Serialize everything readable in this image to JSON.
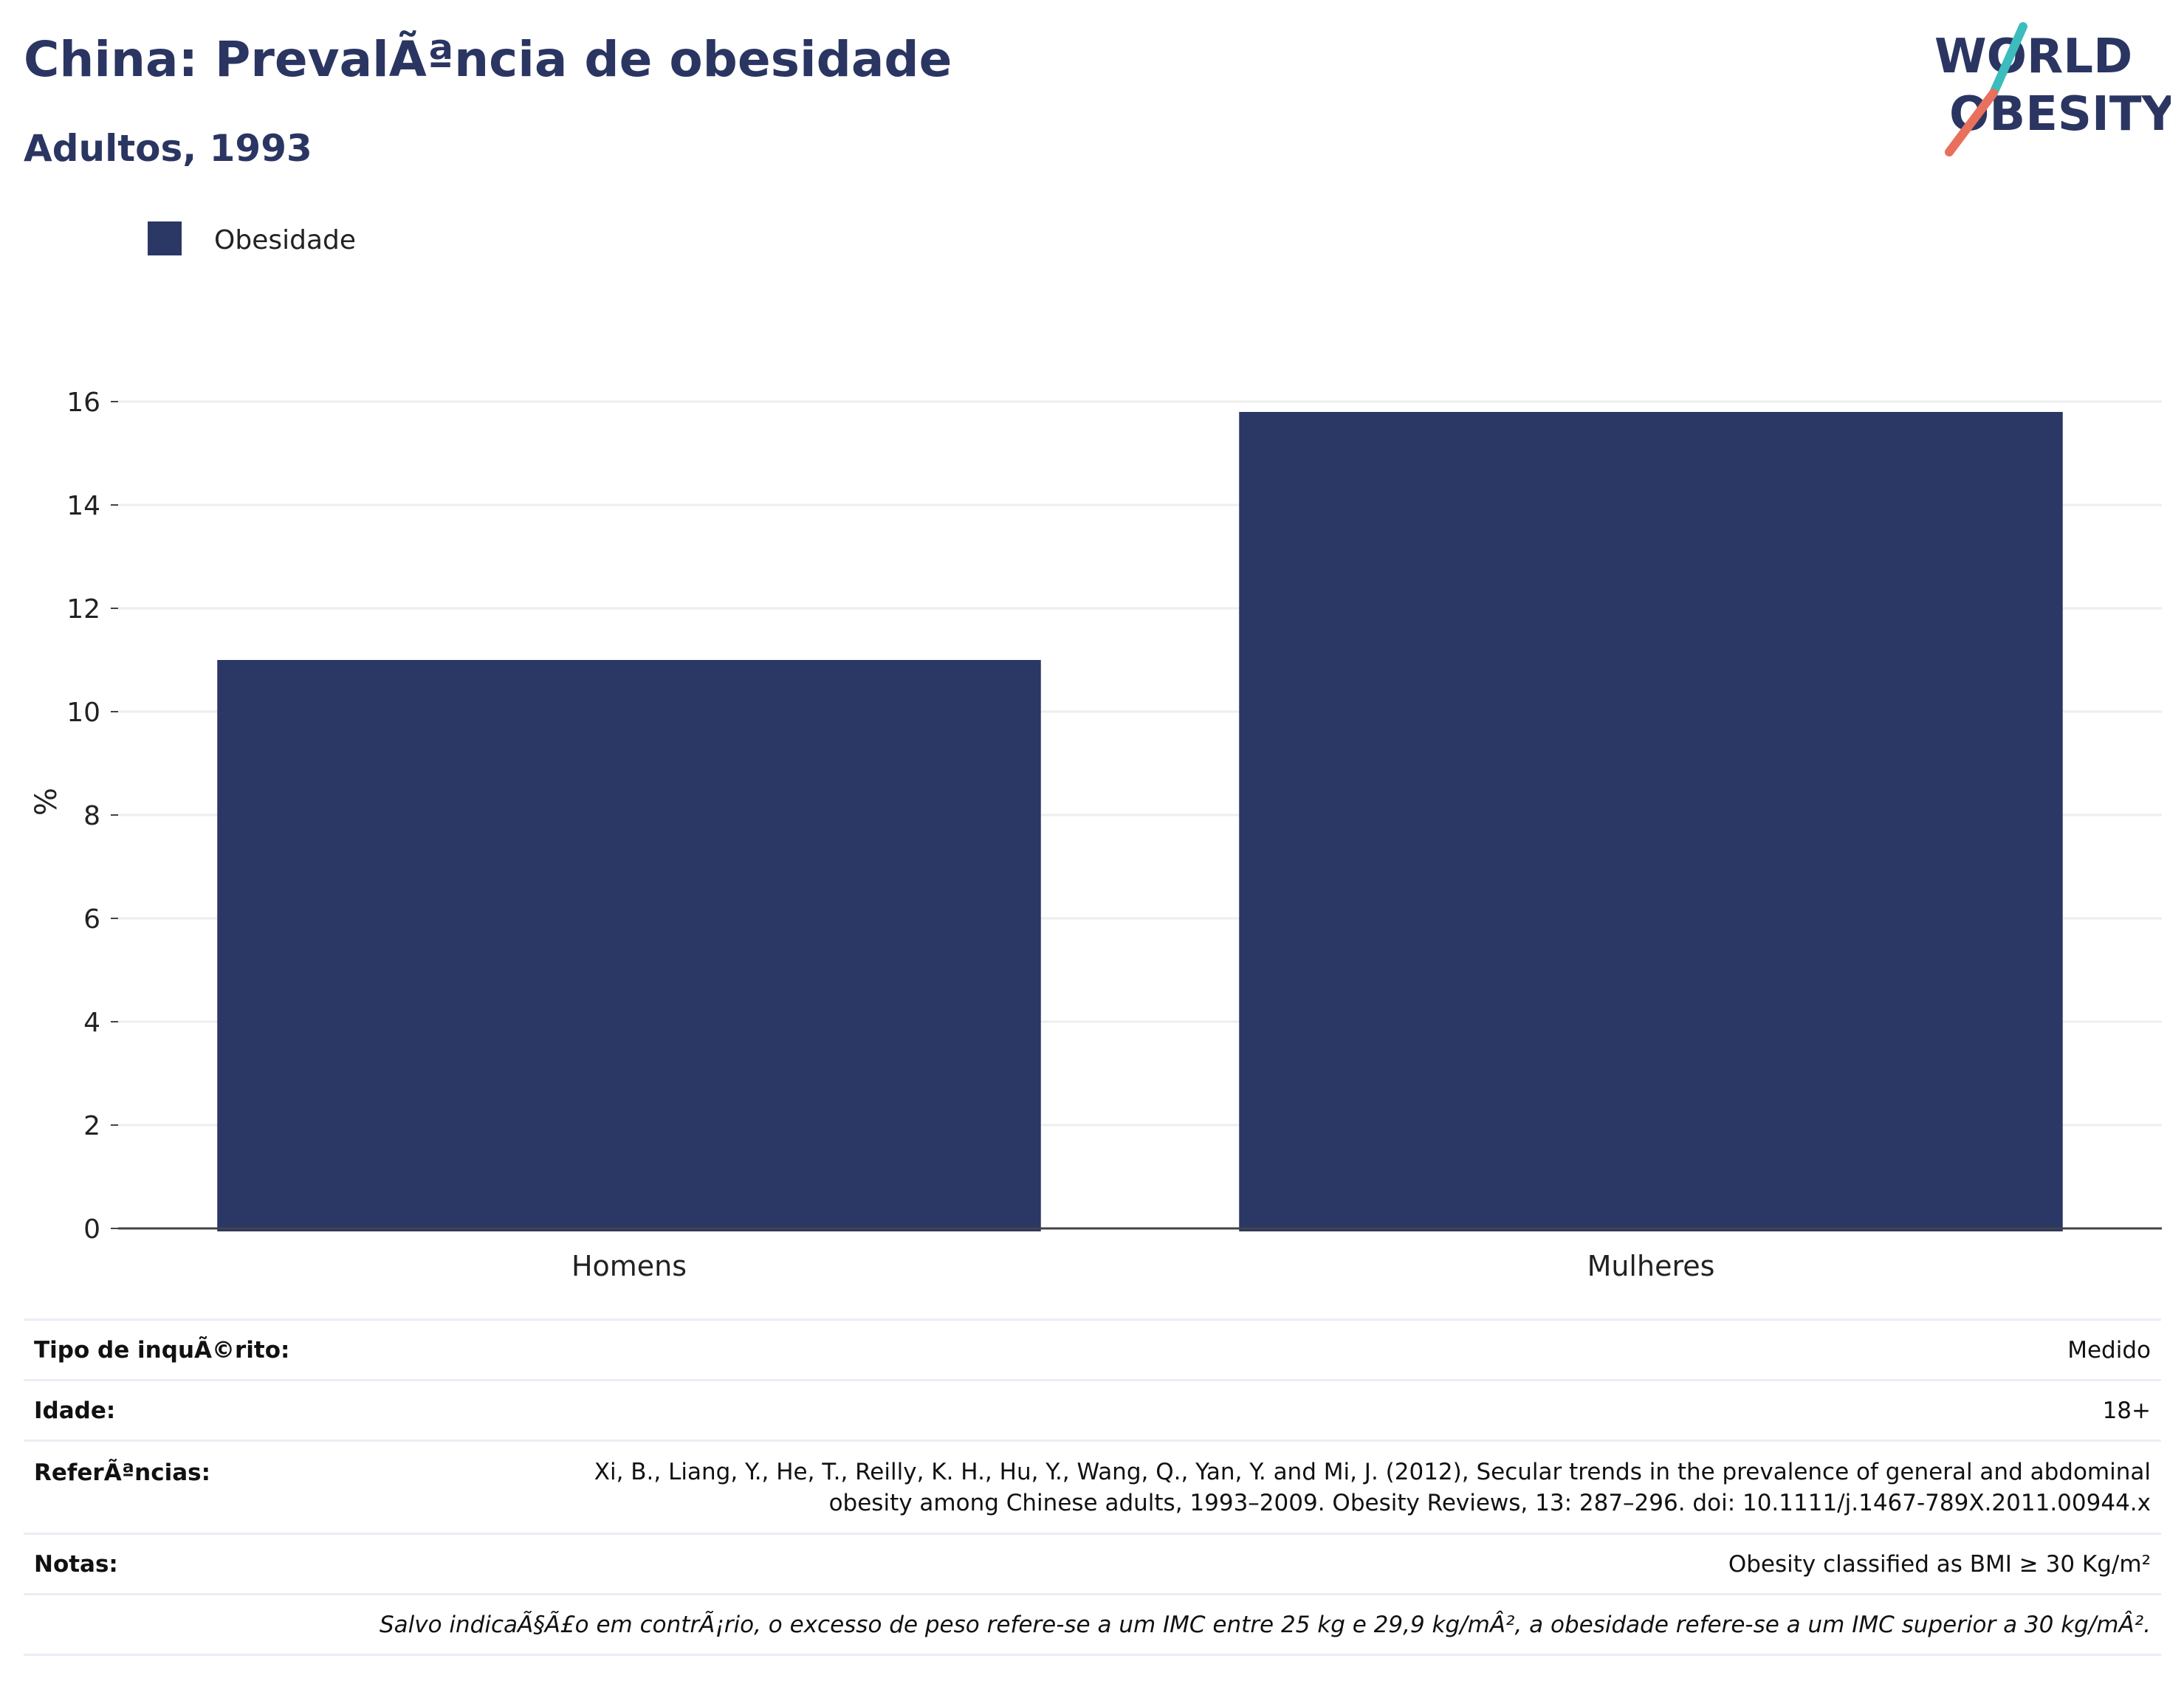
{
  "header": {
    "title": "China: PrevalÃªncia de obesidade",
    "subtitle": "Adultos, 1993",
    "logo_text_line1": "WORLD",
    "logo_text_line2": "OBESITY"
  },
  "colors": {
    "title": "#2a3562",
    "bar": "#2b3764",
    "logo_navy": "#2a3562",
    "logo_teal": "#3cbcbc",
    "logo_coral": "#e8705c",
    "gridline": "#eeeeee"
  },
  "chart_data": {
    "type": "bar",
    "title": "China: PrevalÃªncia de obesidade",
    "subtitle": "Adultos, 1993",
    "categories": [
      "Homens",
      "Mulheres"
    ],
    "series": [
      {
        "name": "Obesidade",
        "values": [
          11.0,
          15.8
        ]
      }
    ],
    "ylabel": "%",
    "ylim": [
      0,
      16
    ],
    "yticks": [
      0,
      2,
      4,
      6,
      8,
      10,
      12,
      14,
      16
    ],
    "grid": true,
    "legend_position": "top-left"
  },
  "info": {
    "rows": [
      {
        "key": "Tipo de inquÃ©rito:",
        "value": "Medido"
      },
      {
        "key": "Idade:",
        "value": "18+"
      },
      {
        "key": "ReferÃªncias:",
        "value_lines": [
          "Xi, B., Liang, Y., He, T., Reilly, K. H., Hu, Y., Wang, Q., Yan, Y. and Mi, J. (2012), Secular trends in the prevalence of general and abdominal",
          "obesity among Chinese adults, 1993–2009. Obesity Reviews, 13: 287–296. doi: 10.1111/j.1467-789X.2011.00944.x"
        ]
      },
      {
        "key": "Notas:",
        "value": "Obesity classified as BMI ≥ 30 Kg/m²"
      }
    ],
    "footnote": "Salvo indicaÃ§Ã£o em contrÃ¡rio, o excesso de peso refere-se a um IMC entre 25 kg e 29,9 kg/mÂ², a obesidade refere-se a um IMC superior a 30 kg/mÂ²."
  }
}
